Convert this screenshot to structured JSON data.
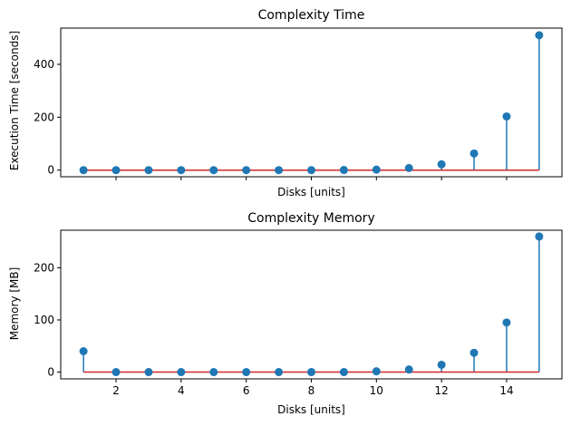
{
  "chart_data": [
    {
      "type": "stem",
      "title": "Complexity Time",
      "xlabel": "Disks [units]",
      "ylabel": "Execution Time [seconds]",
      "xlim": [
        0.3,
        15.7
      ],
      "ylim": [
        -25,
        537
      ],
      "x_ticks": [
        2,
        4,
        6,
        8,
        10,
        12,
        14
      ],
      "x_tick_labels_visible": false,
      "y_ticks": [
        0,
        200,
        400
      ],
      "y_tick_labels": [
        "0",
        "200",
        "400"
      ],
      "grid": false,
      "baseline": 0,
      "series": [
        {
          "marker_color": "#1f77b4",
          "baseline_color": "#d62728",
          "x": [
            1,
            2,
            3,
            4,
            5,
            6,
            7,
            8,
            9,
            10,
            11,
            12,
            13,
            14,
            15
          ],
          "y": [
            0,
            0,
            0,
            0,
            0,
            0,
            0,
            0,
            0.5,
            2,
            8,
            22,
            63,
            203,
            510
          ]
        }
      ]
    },
    {
      "type": "stem",
      "title": "Complexity Memory",
      "xlabel": "Disks [units]",
      "ylabel": "Memory [MB]",
      "xlim": [
        0.3,
        15.7
      ],
      "ylim": [
        -13,
        272
      ],
      "x_ticks": [
        2,
        4,
        6,
        8,
        10,
        12,
        14
      ],
      "x_tick_labels": [
        "2",
        "4",
        "6",
        "8",
        "10",
        "12",
        "14"
      ],
      "y_ticks": [
        0,
        100,
        200
      ],
      "y_tick_labels": [
        "0",
        "100",
        "200"
      ],
      "grid": false,
      "baseline": 0,
      "series": [
        {
          "marker_color": "#1f77b4",
          "baseline_color": "#d62728",
          "x": [
            1,
            2,
            3,
            4,
            5,
            6,
            7,
            8,
            9,
            10,
            11,
            12,
            13,
            14,
            15
          ],
          "y": [
            40,
            0,
            0,
            0,
            0,
            0,
            0,
            0,
            0,
            1.5,
            5,
            14,
            37,
            95,
            260
          ]
        }
      ]
    }
  ]
}
